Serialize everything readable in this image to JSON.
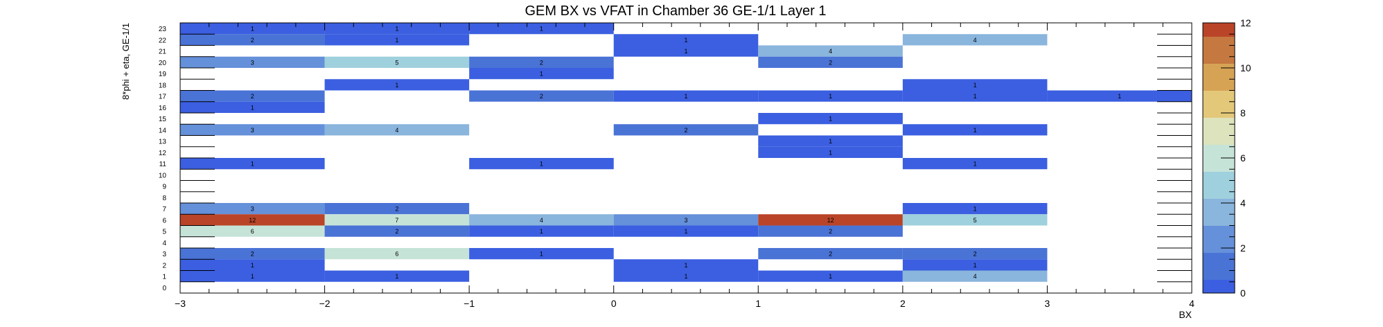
{
  "chart_data": {
    "type": "heatmap",
    "title": "GEM BX vs VFAT in Chamber 36 GE-1/1 Layer 1",
    "xlabel": "BX",
    "ylabel": "8*phi + eta, GE-1/1",
    "xlim": [
      -3,
      4
    ],
    "ylim": [
      0,
      24
    ],
    "x_tick_labels": [
      "−3",
      "−2",
      "−1",
      "0",
      "1",
      "2",
      "3",
      "4"
    ],
    "y_tick_labels": [
      "0",
      "1",
      "2",
      "3",
      "4",
      "5",
      "6",
      "7",
      "8",
      "9",
      "10",
      "11",
      "12",
      "13",
      "14",
      "15",
      "16",
      "17",
      "18",
      "19",
      "20",
      "21",
      "22",
      "23"
    ],
    "x_bin_edges": [
      -3,
      -2,
      -1,
      0,
      1,
      2,
      3,
      4
    ],
    "colorbar": {
      "min": 0,
      "max": 12,
      "tick_labels": [
        "0",
        "2",
        "4",
        "6",
        "8",
        "10",
        "12"
      ]
    },
    "cells": [
      {
        "x": -3,
        "y": 23,
        "v": 1
      },
      {
        "x": -2,
        "y": 23,
        "v": 1
      },
      {
        "x": -1,
        "y": 23,
        "v": 1
      },
      {
        "x": -3,
        "y": 22,
        "v": 2
      },
      {
        "x": -2,
        "y": 22,
        "v": 1
      },
      {
        "x": 0,
        "y": 22,
        "v": 1
      },
      {
        "x": 2,
        "y": 22,
        "v": 4
      },
      {
        "x": 0,
        "y": 21,
        "v": 1
      },
      {
        "x": 1,
        "y": 21,
        "v": 4
      },
      {
        "x": -3,
        "y": 20,
        "v": 3
      },
      {
        "x": -2,
        "y": 20,
        "v": 5
      },
      {
        "x": -1,
        "y": 20,
        "v": 2
      },
      {
        "x": 1,
        "y": 20,
        "v": 2
      },
      {
        "x": -1,
        "y": 19,
        "v": 1
      },
      {
        "x": -2,
        "y": 18,
        "v": 1
      },
      {
        "x": 2,
        "y": 18,
        "v": 1
      },
      {
        "x": -3,
        "y": 17,
        "v": 2
      },
      {
        "x": -1,
        "y": 17,
        "v": 2
      },
      {
        "x": 0,
        "y": 17,
        "v": 1
      },
      {
        "x": 1,
        "y": 17,
        "v": 1
      },
      {
        "x": 2,
        "y": 17,
        "v": 1
      },
      {
        "x": 3,
        "y": 17,
        "v": 1
      },
      {
        "x": -3,
        "y": 16,
        "v": 1
      },
      {
        "x": 1,
        "y": 15,
        "v": 1
      },
      {
        "x": -3,
        "y": 14,
        "v": 3
      },
      {
        "x": -2,
        "y": 14,
        "v": 4
      },
      {
        "x": 0,
        "y": 14,
        "v": 2
      },
      {
        "x": 2,
        "y": 14,
        "v": 1
      },
      {
        "x": 1,
        "y": 13,
        "v": 1
      },
      {
        "x": 1,
        "y": 12,
        "v": 1
      },
      {
        "x": -3,
        "y": 11,
        "v": 1
      },
      {
        "x": -1,
        "y": 11,
        "v": 1
      },
      {
        "x": 2,
        "y": 11,
        "v": 1
      },
      {
        "x": -3,
        "y": 7,
        "v": 3
      },
      {
        "x": -2,
        "y": 7,
        "v": 2
      },
      {
        "x": 2,
        "y": 7,
        "v": 1
      },
      {
        "x": -3,
        "y": 6,
        "v": 12
      },
      {
        "x": -2,
        "y": 6,
        "v": 7
      },
      {
        "x": -1,
        "y": 6,
        "v": 4
      },
      {
        "x": 0,
        "y": 6,
        "v": 3
      },
      {
        "x": 1,
        "y": 6,
        "v": 12
      },
      {
        "x": 2,
        "y": 6,
        "v": 5
      },
      {
        "x": -3,
        "y": 5,
        "v": 6
      },
      {
        "x": -2,
        "y": 5,
        "v": 2
      },
      {
        "x": -1,
        "y": 5,
        "v": 1
      },
      {
        "x": 0,
        "y": 5,
        "v": 1
      },
      {
        "x": 1,
        "y": 5,
        "v": 2
      },
      {
        "x": -3,
        "y": 3,
        "v": 2
      },
      {
        "x": -2,
        "y": 3,
        "v": 6
      },
      {
        "x": -1,
        "y": 3,
        "v": 1
      },
      {
        "x": 1,
        "y": 3,
        "v": 2
      },
      {
        "x": 2,
        "y": 3,
        "v": 2
      },
      {
        "x": -3,
        "y": 2,
        "v": 1
      },
      {
        "x": 0,
        "y": 2,
        "v": 1
      },
      {
        "x": 2,
        "y": 2,
        "v": 1
      },
      {
        "x": -3,
        "y": 1,
        "v": 1
      },
      {
        "x": -2,
        "y": 1,
        "v": 1
      },
      {
        "x": 0,
        "y": 1,
        "v": 1
      },
      {
        "x": 1,
        "y": 1,
        "v": 1
      },
      {
        "x": 2,
        "y": 1,
        "v": 4
      }
    ],
    "grid": false,
    "legend": "colorbar-right"
  },
  "colors": {
    "palette": [
      "#3b5fe0",
      "#4a73d6",
      "#6590da",
      "#8ab5dd",
      "#9fd0dd",
      "#c6e3d8",
      "#dde3bc",
      "#e3c87a",
      "#d6a355",
      "#c57840",
      "#ba4428"
    ]
  }
}
